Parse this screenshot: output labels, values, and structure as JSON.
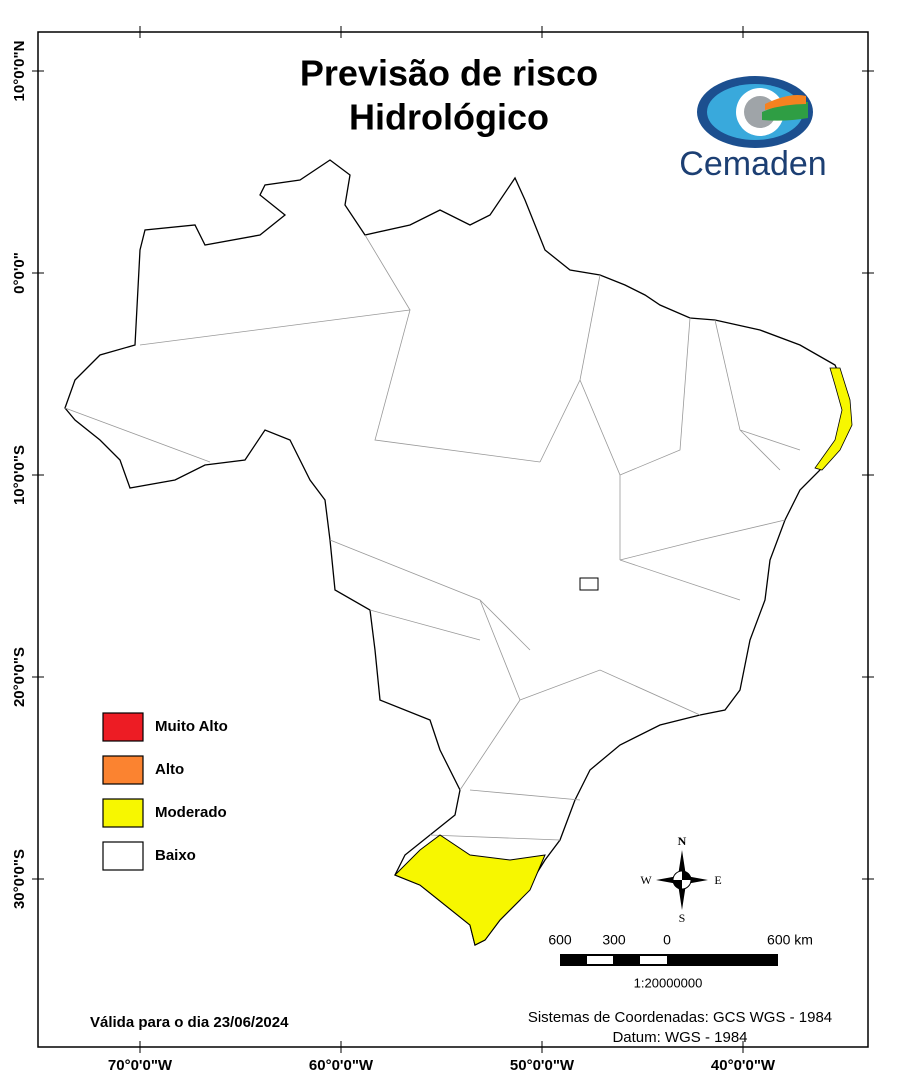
{
  "title": [
    "Previsão de risco",
    "Hidrológico"
  ],
  "logo": "Cemaden",
  "graticule": {
    "longitudes": [
      {
        "value": -70,
        "label": "70°0'0\"W"
      },
      {
        "value": -60,
        "label": "60°0'0\"W"
      },
      {
        "value": -50,
        "label": "50°0'0\"W"
      },
      {
        "value": -40,
        "label": "40°0'0\"W"
      }
    ],
    "latitudes": [
      {
        "value": 10,
        "label": "10°0'0\"N"
      },
      {
        "value": 0,
        "label": "0°0'0\""
      },
      {
        "value": -10,
        "label": "10°0'0\"S"
      },
      {
        "value": -20,
        "label": "20°0'0\"S"
      },
      {
        "value": -30,
        "label": "30°0'0\"S"
      }
    ]
  },
  "legend": [
    {
      "label": "Muito Alto",
      "color": "#ed1c24"
    },
    {
      "label": "Alto",
      "color": "#fb8330"
    },
    {
      "label": "Moderado",
      "color": "#f7f700"
    },
    {
      "label": "Baixo",
      "color": "#ffffff"
    }
  ],
  "compass": {
    "n": "N",
    "s": "S",
    "e": "E",
    "w": "W"
  },
  "scale": {
    "labels": [
      "600",
      "300",
      "0",
      "600 km"
    ],
    "ratio": "1:20000000"
  },
  "validity": "Válida para o dia 23/06/2024",
  "coordinates": [
    "Sistemas de Coordenadas: GCS WGS - 1984",
    "Datum: WGS - 1984"
  ]
}
